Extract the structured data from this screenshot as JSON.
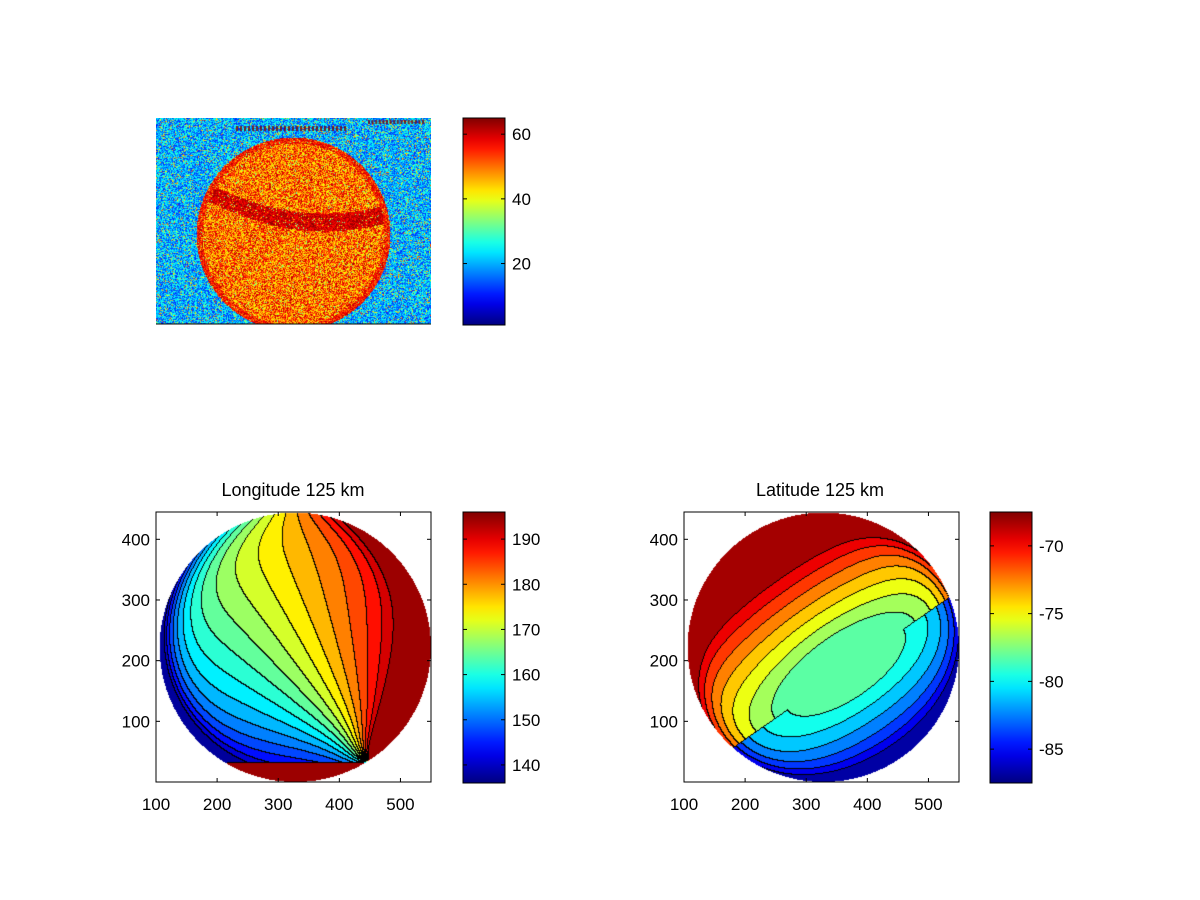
{
  "chart_data": [
    {
      "type": "heatmap",
      "title": "",
      "xlabel": "",
      "ylabel": "",
      "axis_ticks_visible": false,
      "image_description_tags": [
        "noisy-image",
        "bright-disk",
        "dark-diagonal-band"
      ],
      "colormap": "jet",
      "colorbar": {
        "min": 1,
        "max": 65,
        "ticks": [
          20,
          40,
          60
        ],
        "tick_labels": [
          "20",
          "40",
          "60"
        ]
      }
    },
    {
      "type": "heatmap",
      "title": "Longitude 125 km",
      "xlabel": "",
      "ylabel": "",
      "xlim": [
        100,
        550
      ],
      "ylim": [
        0,
        445
      ],
      "xticks": [
        100,
        200,
        300,
        400,
        500
      ],
      "xtick_labels": [
        "100",
        "200",
        "300",
        "400",
        "500"
      ],
      "yticks": [
        100,
        200,
        300,
        400
      ],
      "ytick_labels": [
        "100",
        "200",
        "300",
        "400"
      ],
      "disk": {
        "center": [
          328,
          222
        ],
        "radius": 222
      },
      "pole": [
        450,
        32
      ],
      "contour_levels": 18,
      "value_range": [
        136,
        196
      ],
      "colormap": "jet",
      "colorbar": {
        "min": 136,
        "max": 196,
        "ticks": [
          140,
          150,
          160,
          170,
          180,
          190
        ],
        "tick_labels": [
          "140",
          "150",
          "160",
          "170",
          "180",
          "190"
        ]
      }
    },
    {
      "type": "heatmap",
      "title": "Latitude 125 km",
      "xlabel": "",
      "ylabel": "",
      "xlim": [
        100,
        550
      ],
      "ylim": [
        0,
        445
      ],
      "xticks": [
        100,
        200,
        300,
        400,
        500
      ],
      "xtick_labels": [
        "100",
        "200",
        "300",
        "400",
        "500"
      ],
      "yticks": [
        100,
        200,
        300,
        400
      ],
      "ytick_labels": [
        "100",
        "200",
        "300",
        "400"
      ],
      "disk": {
        "center": [
          328,
          222
        ],
        "radius": 222
      },
      "plateau": {
        "center": [
          365,
          185
        ],
        "value": -78.6
      },
      "contour_levels": 14,
      "value_range": [
        -87.5,
        -67.5
      ],
      "colormap": "jet",
      "colorbar": {
        "min": -87.5,
        "max": -67.5,
        "ticks": [
          -85,
          -80,
          -75,
          -70
        ],
        "tick_labels": [
          "-85",
          "-80",
          "-75",
          "-70"
        ]
      }
    }
  ]
}
